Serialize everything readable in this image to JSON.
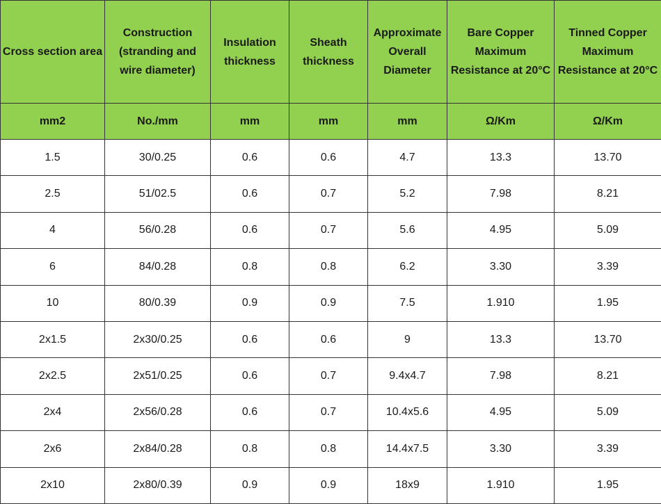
{
  "table": {
    "headers": [
      "Cross section area",
      "Construction (stranding and wire diameter)",
      "Insulation thickness",
      "Sheath thickness",
      "Approximate Overall Diameter",
      "Bare Copper Maximum Resistance at 20°C",
      "Tinned Copper Maximum Resistance at 20°C"
    ],
    "units": [
      "mm2",
      "No./mm",
      "mm",
      "mm",
      "mm",
      "Ω/Km",
      "Ω/Km"
    ],
    "rows": [
      [
        "1.5",
        "30/0.25",
        "0.6",
        "0.6",
        "4.7",
        "13.3",
        "13.70"
      ],
      [
        "2.5",
        "51/02.5",
        "0.6",
        "0.7",
        "5.2",
        "7.98",
        "8.21"
      ],
      [
        "4",
        "56/0.28",
        "0.6",
        "0.7",
        "5.6",
        "4.95",
        "5.09"
      ],
      [
        "6",
        "84/0.28",
        "0.8",
        "0.8",
        "6.2",
        "3.30",
        "3.39"
      ],
      [
        "10",
        "80/0.39",
        "0.9",
        "0.9",
        "7.5",
        "1.910",
        "1.95"
      ],
      [
        "2x1.5",
        "2x30/0.25",
        "0.6",
        "0.6",
        "9",
        "13.3",
        "13.70"
      ],
      [
        "2x2.5",
        "2x51/0.25",
        "0.6",
        "0.7",
        "9.4x4.7",
        "7.98",
        "8.21"
      ],
      [
        "2x4",
        "2x56/0.28",
        "0.6",
        "0.7",
        "10.4x5.6",
        "4.95",
        "5.09"
      ],
      [
        "2x6",
        "2x84/0.28",
        "0.8",
        "0.8",
        "14.4x7.5",
        "3.30",
        "3.39"
      ],
      [
        "2x10",
        "2x80/0.39",
        "0.9",
        "0.9",
        "18x9",
        "1.910",
        "1.95"
      ]
    ]
  },
  "colors": {
    "header_bg": "#92d050",
    "border": "#333333",
    "body_bg": "#ffffff"
  }
}
